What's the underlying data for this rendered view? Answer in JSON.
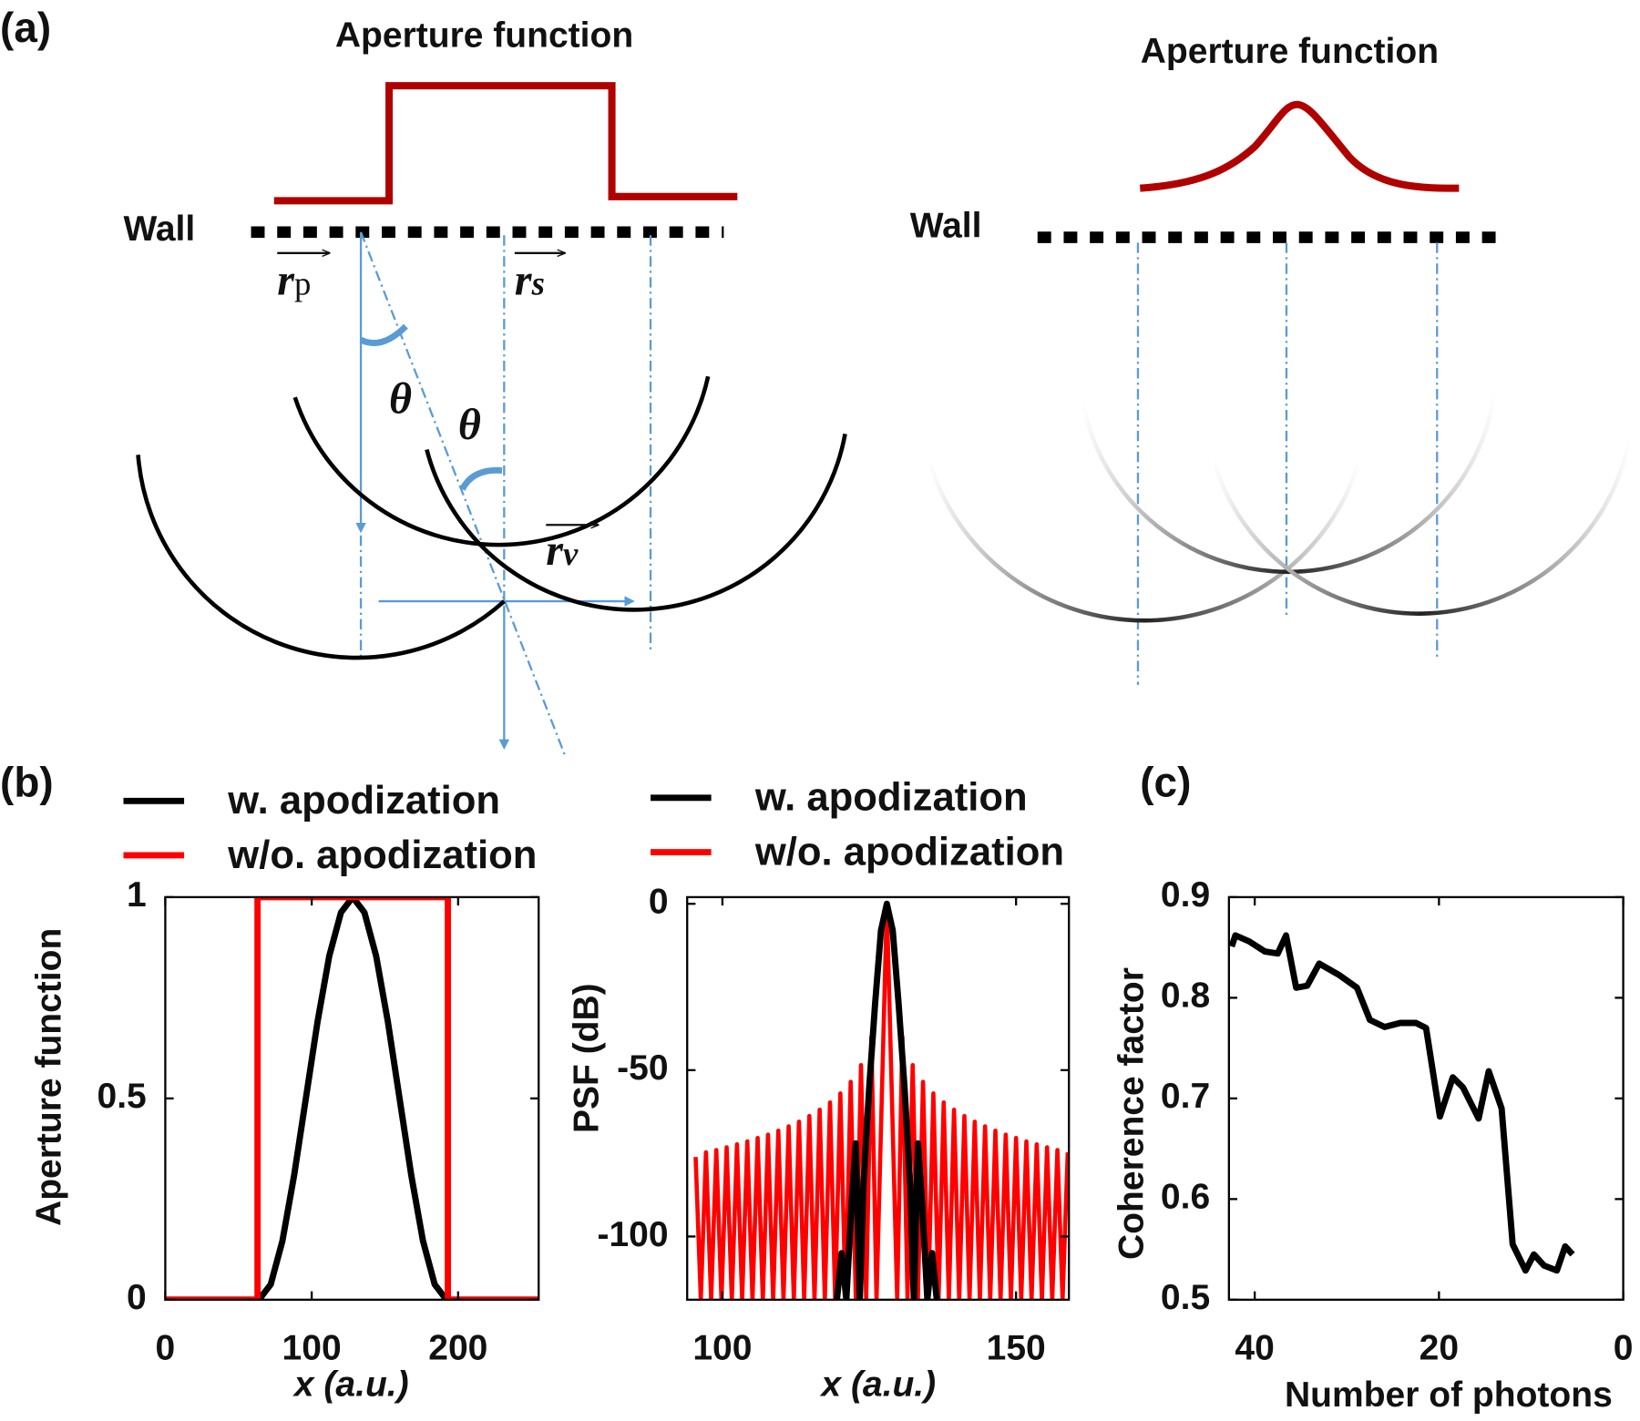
{
  "diagram": {
    "panel_label": "(a)",
    "left": {
      "title": "Aperture function",
      "wall": "Wall",
      "theta_1": "θ",
      "theta_2": "θ",
      "r_p": {
        "symbol": "r",
        "subscript": "p"
      },
      "r_s": {
        "symbol": "r",
        "subscript": "s"
      },
      "r_v": {
        "symbol": "r",
        "subscript": "v"
      }
    },
    "right": {
      "title": "Aperture function",
      "wall": "Wall"
    }
  },
  "chart_data": [
    {
      "type": "line",
      "panel_label": "(b)",
      "xlabel": "x (a.u.)",
      "ylabel": "Aperture function",
      "xlim": [
        0,
        255
      ],
      "ylim": [
        0,
        1
      ],
      "xticks": [
        0,
        100,
        200
      ],
      "yticks": [
        0,
        0.5,
        1
      ],
      "series": [
        {
          "name": "w. apodization",
          "color": "#000000",
          "x": [
            0,
            32,
            64,
            72,
            80,
            88,
            96,
            104,
            112,
            120,
            128,
            136,
            144,
            152,
            160,
            168,
            176,
            184,
            192,
            224,
            255
          ],
          "values": [
            0,
            0,
            0,
            0.038,
            0.146,
            0.309,
            0.5,
            0.691,
            0.854,
            0.962,
            1,
            0.962,
            0.854,
            0.691,
            0.5,
            0.309,
            0.146,
            0.038,
            0,
            0,
            0
          ]
        },
        {
          "name": "w/o. apodization",
          "color": "#ff0000",
          "x": [
            0,
            63,
            63,
            193,
            193,
            255
          ],
          "values": [
            0,
            0,
            1,
            1,
            0,
            0
          ]
        }
      ]
    },
    {
      "type": "line",
      "xlabel": "x (a.u.)",
      "ylabel": "PSF (dB)",
      "xlim": [
        94,
        159
      ],
      "ylim": [
        -119,
        2
      ],
      "xticks": [
        100,
        150
      ],
      "yticks": [
        0,
        -50,
        -100
      ],
      "series": [
        {
          "name": "w. apodization",
          "color": "#000000",
          "x": [
            119.5,
            120.3,
            121.1,
            122,
            122.7,
            123.4,
            124,
            125,
            126,
            127,
            128,
            129,
            130,
            131,
            132,
            132.6,
            133.3,
            134,
            134.9,
            135.7,
            136.5
          ],
          "values": [
            -119,
            -105,
            -119,
            -90,
            -72,
            -119,
            -85,
            -55,
            -30,
            -8,
            0,
            -8,
            -30,
            -55,
            -85,
            -119,
            -72,
            -90,
            -119,
            -105,
            -119
          ]
        },
        {
          "name": "w/o. apodization",
          "color": "#ff0000",
          "x": [
            95.44,
            96.32,
            97.2,
            98.08,
            98.96,
            99.84,
            100.72,
            101.6,
            102.48,
            103.36,
            104.24,
            105.12,
            106,
            106.88,
            107.76,
            108.64,
            109.52,
            110.4,
            111.28,
            112.16,
            113.04,
            113.92,
            114.8,
            115.68,
            116.56,
            117.44,
            118.32,
            119.2,
            120.08,
            120.96,
            121.84,
            122.72,
            123.6,
            124.48,
            125.36,
            126.24,
            128,
            129.76,
            130.64,
            131.52,
            132.4,
            133.28,
            134.16,
            135.04,
            135.92,
            136.8,
            137.68,
            138.56,
            139.44,
            140.32,
            141.2,
            142.08,
            142.96,
            143.84,
            144.72,
            145.6,
            146.48,
            147.36,
            148.24,
            149.12,
            150,
            150.88,
            151.76,
            152.64,
            153.52,
            154.4,
            155.28,
            156.16,
            157.04,
            157.92,
            158.8
          ],
          "values": [
            -76.1,
            -119,
            -74.7,
            -119,
            -74,
            -119,
            -73.2,
            -119,
            -72.3,
            -119,
            -71.4,
            -119,
            -70.4,
            -119,
            -69.4,
            -119,
            -68.2,
            -119,
            -66.9,
            -119,
            -65.5,
            -119,
            -63.8,
            -119,
            -61.9,
            -119,
            -59.7,
            -119,
            -57,
            -119,
            -53.5,
            -119,
            -48.5,
            -119,
            -40,
            -119,
            0,
            -119,
            -40,
            -119,
            -48.5,
            -119,
            -53.5,
            -119,
            -57,
            -119,
            -59.7,
            -119,
            -61.9,
            -119,
            -63.8,
            -119,
            -65.5,
            -119,
            -66.9,
            -119,
            -68.2,
            -119,
            -69.4,
            -119,
            -70.4,
            -119,
            -71.4,
            -119,
            -72.3,
            -119,
            -73.2,
            -119,
            -74,
            -119,
            -74.7
          ]
        }
      ]
    },
    {
      "type": "line",
      "panel_label": "(c)",
      "xlabel": "Number of photons",
      "ylabel": "Coherence factor",
      "xlim": [
        42.8,
        0
      ],
      "ylim": [
        0.5,
        0.9
      ],
      "xticks": [
        40,
        20,
        0
      ],
      "yticks": [
        0.5,
        0.6,
        0.7,
        0.8,
        0.9
      ],
      "series": [
        {
          "color": "#000000",
          "x": [
            42.5,
            42.1,
            40.6,
            38.9,
            37.5,
            36.6,
            35.5,
            34.3,
            33,
            30.9,
            28.9,
            27.5,
            25.9,
            24.2,
            22.5,
            21.4,
            19.9,
            18.5,
            17.4,
            15.7,
            14.6,
            13.2,
            12,
            10.6,
            9.7,
            8.6,
            7.2,
            6.3,
            5.5
          ],
          "values": [
            0.851,
            0.862,
            0.856,
            0.846,
            0.844,
            0.862,
            0.81,
            0.812,
            0.834,
            0.823,
            0.81,
            0.778,
            0.771,
            0.775,
            0.775,
            0.77,
            0.682,
            0.721,
            0.711,
            0.68,
            0.727,
            0.69,
            0.555,
            0.529,
            0.545,
            0.534,
            0.529,
            0.553,
            0.545
          ]
        }
      ]
    }
  ]
}
